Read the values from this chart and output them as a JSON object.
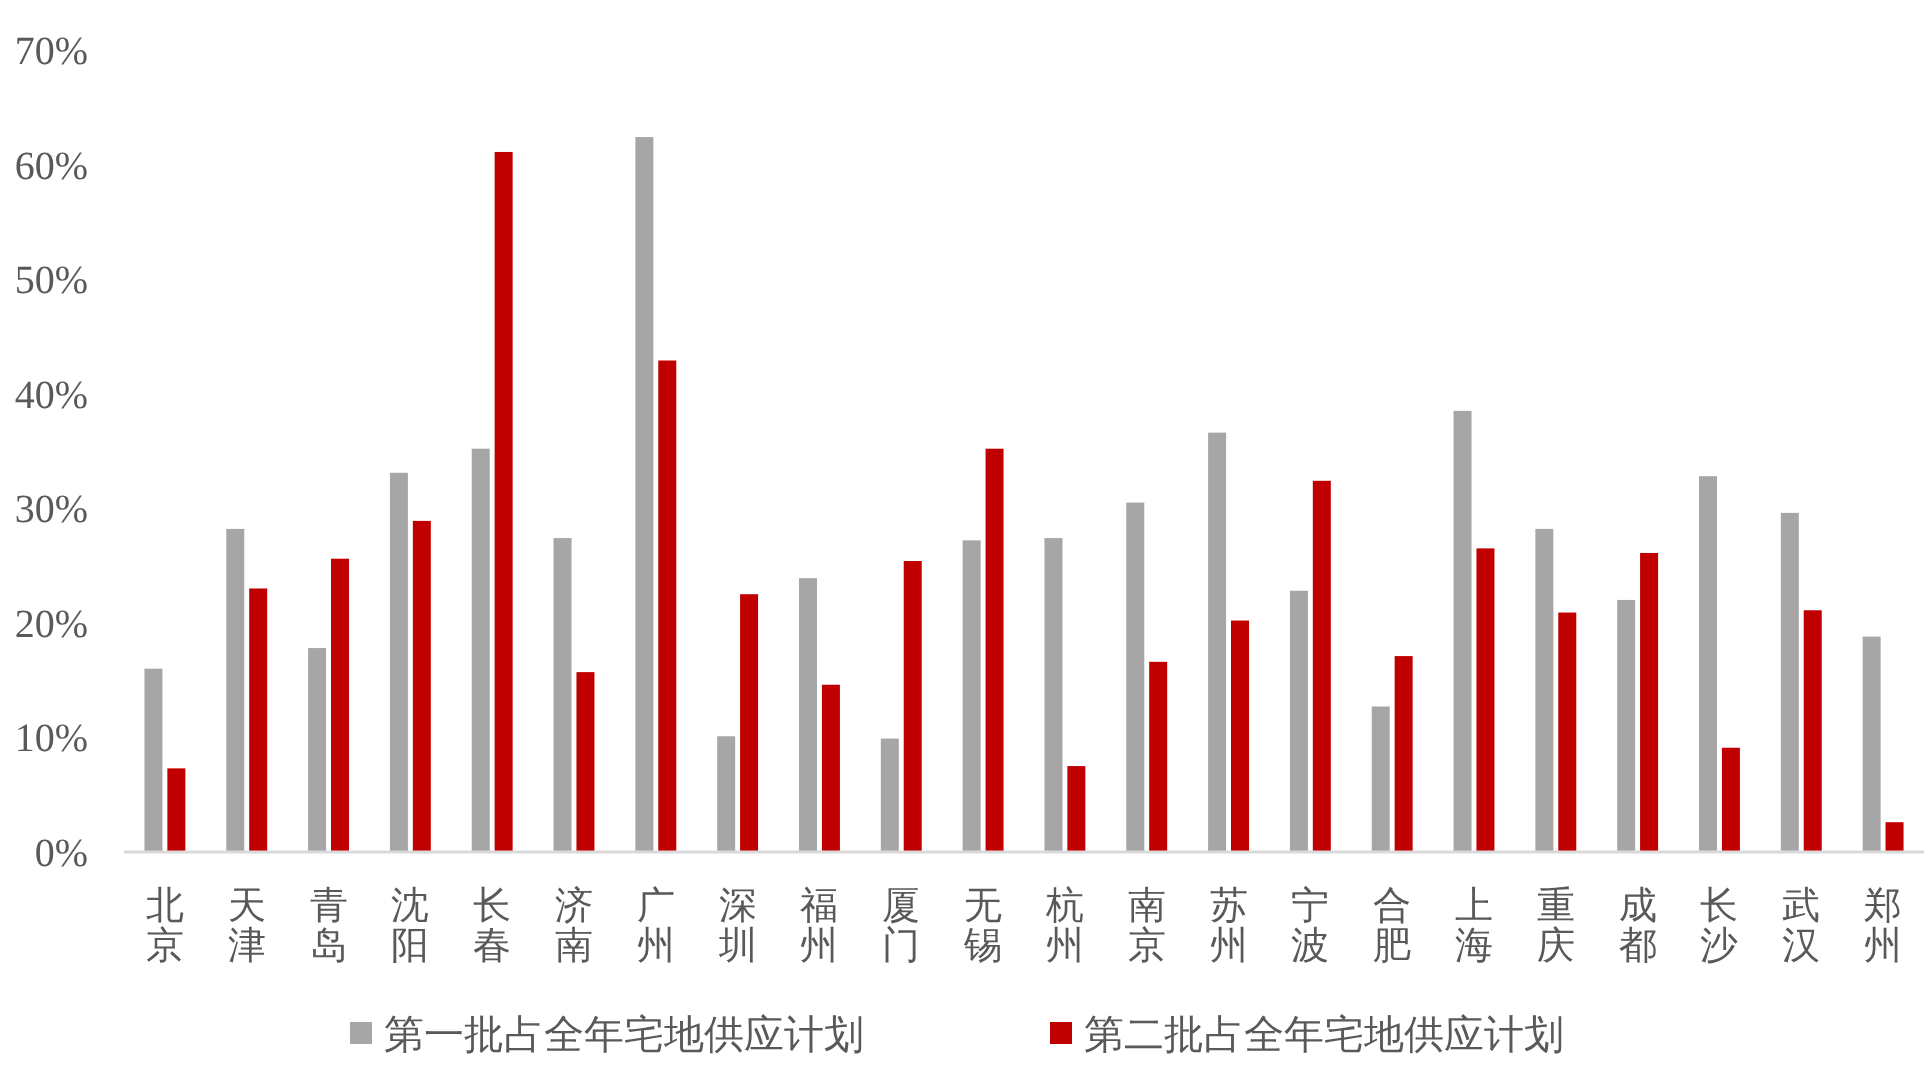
{
  "chart_data": {
    "type": "bar",
    "categories": [
      "北京",
      "天津",
      "青岛",
      "沈阳",
      "长春",
      "济南",
      "广州",
      "深圳",
      "福州",
      "厦门",
      "无锡",
      "杭州",
      "南京",
      "苏州",
      "宁波",
      "合肥",
      "上海",
      "重庆",
      "成都",
      "长沙",
      "武汉",
      "郑州"
    ],
    "series": [
      {
        "name": "第一批占全年宅地供应计划",
        "color": "#a6a6a6",
        "values": [
          16.0,
          28.2,
          17.8,
          33.1,
          35.2,
          27.4,
          62.4,
          10.1,
          23.9,
          9.9,
          27.2,
          27.4,
          30.5,
          36.6,
          22.8,
          12.7,
          38.5,
          28.2,
          22.0,
          32.8,
          29.6,
          18.8
        ]
      },
      {
        "name": "第二批占全年宅地供应计划",
        "color": "#c00000",
        "values": [
          7.3,
          23.0,
          25.6,
          28.9,
          61.1,
          15.7,
          42.9,
          22.5,
          14.6,
          25.4,
          35.2,
          7.5,
          16.6,
          20.2,
          32.4,
          17.1,
          26.5,
          20.9,
          26.1,
          9.1,
          21.1,
          2.6
        ]
      }
    ],
    "ylim": [
      0,
      70
    ],
    "yticks": [
      {
        "value": 0,
        "label": "0%"
      },
      {
        "value": 10,
        "label": "10%"
      },
      {
        "value": 20,
        "label": "20%"
      },
      {
        "value": 30,
        "label": "30%"
      },
      {
        "value": 40,
        "label": "40%"
      },
      {
        "value": 50,
        "label": "50%"
      },
      {
        "value": 60,
        "label": "60%"
      },
      {
        "value": 70,
        "label": "70%"
      }
    ],
    "grid": false,
    "legend": "bottom"
  }
}
